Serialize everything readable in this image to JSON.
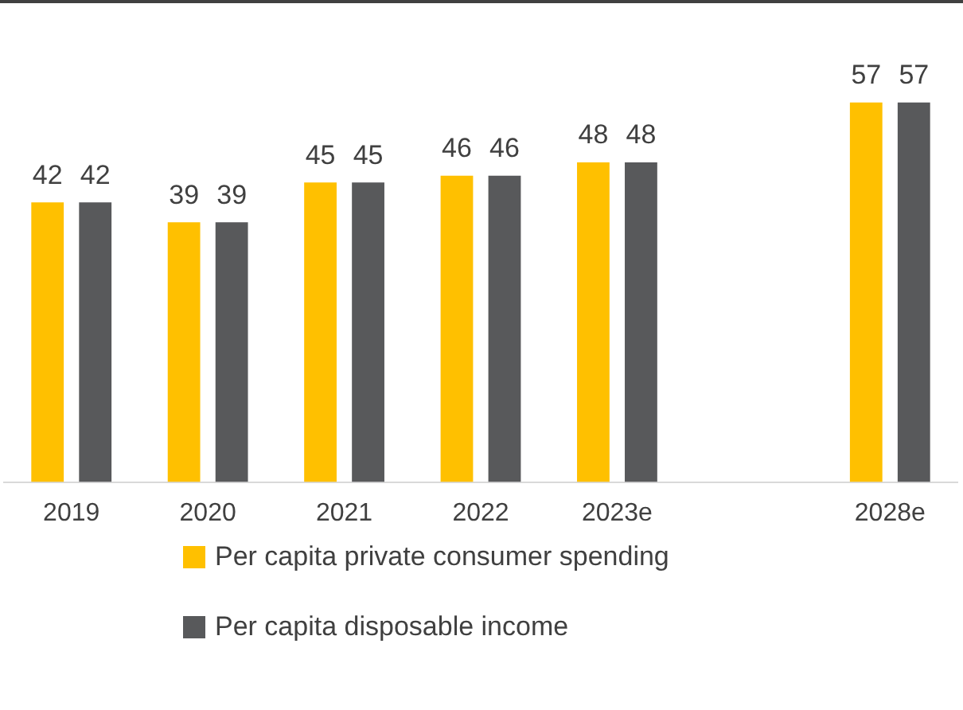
{
  "chart_data": {
    "type": "bar",
    "categories": [
      "2019",
      "2020",
      "2021",
      "2022",
      "2023e",
      null,
      "2028e"
    ],
    "series": [
      {
        "name": "Per capita private consumer spending",
        "color": "#ffc000",
        "values": [
          42,
          39,
          45,
          46,
          48,
          null,
          57
        ]
      },
      {
        "name": "Per capita disposable income",
        "color": "#58595b",
        "values": [
          42,
          39,
          45,
          46,
          48,
          null,
          57
        ]
      }
    ],
    "data_labels": true,
    "legend": "bottom",
    "grid": false
  }
}
